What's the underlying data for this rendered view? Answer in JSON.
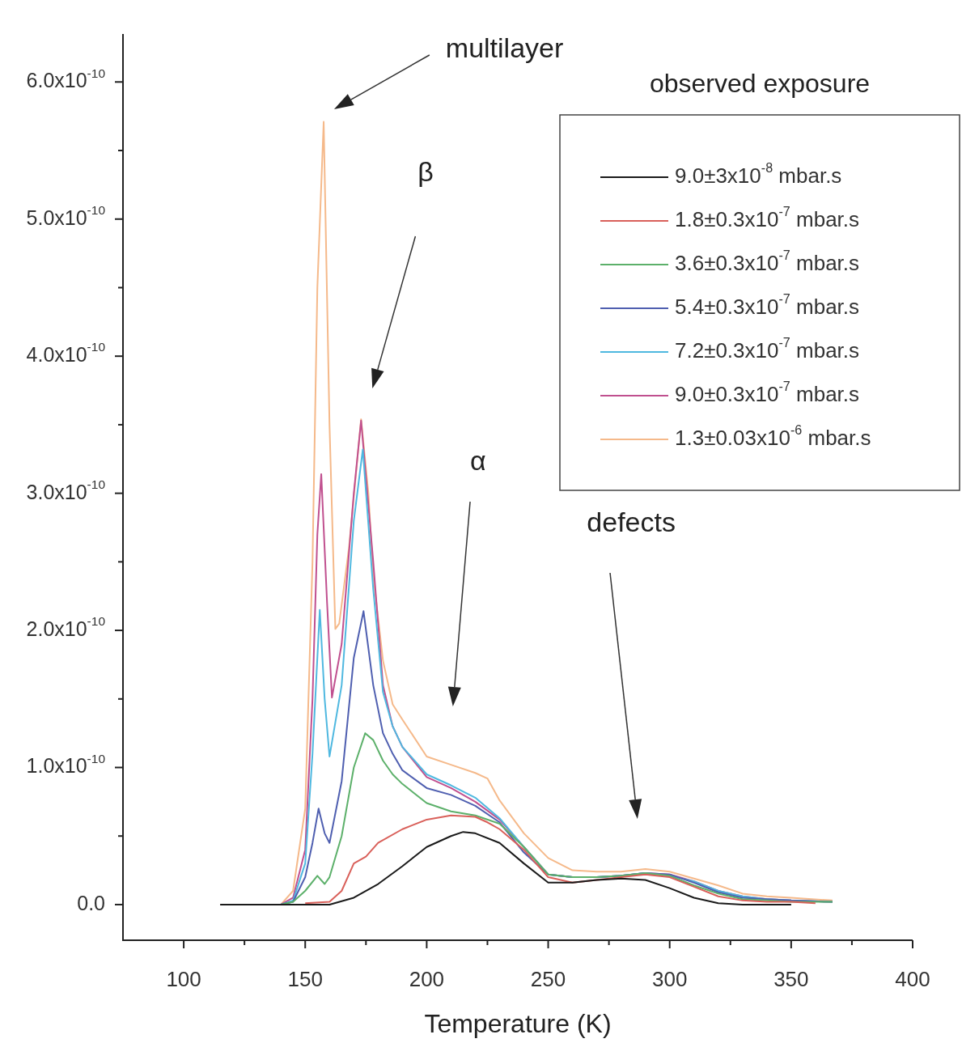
{
  "chart_data": {
    "type": "line",
    "xlabel": "Temperature (K)",
    "legend_title": "observed exposure",
    "legend": "top right",
    "xlim": [
      75,
      400
    ],
    "xticks": [
      {
        "value": 100,
        "label": "100"
      },
      {
        "value": 125,
        "label": null
      },
      {
        "value": 150,
        "label": "150"
      },
      {
        "value": 175,
        "label": null
      },
      {
        "value": 200,
        "label": "200"
      },
      {
        "value": 225,
        "label": null
      },
      {
        "value": 250,
        "label": "250"
      },
      {
        "value": 275,
        "label": null
      },
      {
        "value": 300,
        "label": "300"
      },
      {
        "value": 325,
        "label": null
      },
      {
        "value": 350,
        "label": "350"
      },
      {
        "value": 375,
        "label": null
      },
      {
        "value": 400,
        "label": "400"
      }
    ],
    "ylim": [
      -2.6e-11,
      6.35e-10
    ],
    "yticks": [
      {
        "value": 0,
        "label": "0.0"
      },
      {
        "value": 5e-11,
        "label": null
      },
      {
        "value": 1e-10,
        "label": "1.0x10$^{-10}$"
      },
      {
        "value": 1.5e-10,
        "label": null
      },
      {
        "value": 2e-10,
        "label": "2.0x10$^{-10}$"
      },
      {
        "value": 2.5e-10,
        "label": null
      },
      {
        "value": 3e-10,
        "label": "3.0x10$^{-10}$"
      },
      {
        "value": 3.5e-10,
        "label": null
      },
      {
        "value": 4e-10,
        "label": "4.0x10$^{-10}$"
      },
      {
        "value": 4.5e-10,
        "label": null
      },
      {
        "value": 5e-10,
        "label": "5.0x10$^{-10}$"
      },
      {
        "value": 5.5e-10,
        "label": null
      },
      {
        "value": 6e-10,
        "label": "6.0x10$^{-10}$"
      }
    ],
    "grid": false,
    "marker": "none",
    "line_style": "solid",
    "annotations": [
      "multilayer",
      "β",
      "α",
      "defects"
    ],
    "series": [
      {
        "name": "9.0±3x10$^{-8}$ mbar.s",
        "color": "#1a1a1a",
        "x": [
          115,
          160,
          170,
          180,
          190,
          200,
          210,
          215,
          220,
          230,
          240,
          250,
          260,
          270,
          280,
          290,
          300,
          310,
          320,
          330,
          350
        ],
        "values": [
          0,
          0,
          5e-12,
          1.5e-11,
          2.8e-11,
          4.2e-11,
          5e-11,
          5.3e-11,
          5.2e-11,
          4.5e-11,
          3e-11,
          1.6e-11,
          1.6e-11,
          1.8e-11,
          1.9e-11,
          1.8e-11,
          1.2e-11,
          5e-12,
          1e-12,
          0,
          0
        ]
      },
      {
        "name": "1.8±0.3x10$^{-7}$ mbar.s",
        "color": "#d9605a",
        "x": [
          150,
          160,
          165,
          170,
          175,
          180,
          190,
          200,
          210,
          220,
          225,
          230,
          240,
          250,
          260,
          270,
          280,
          290,
          300,
          310,
          320,
          330,
          340,
          350,
          360
        ],
        "values": [
          1e-12,
          2e-12,
          1e-11,
          3e-11,
          3.5e-11,
          4.5e-11,
          5.5e-11,
          6.2e-11,
          6.5e-11,
          6.4e-11,
          6e-11,
          5.5e-11,
          4e-11,
          2e-11,
          1.6e-11,
          1.8e-11,
          2e-11,
          2.2e-11,
          2e-11,
          1.3e-11,
          6e-12,
          3e-12,
          2e-12,
          2e-12,
          1e-12
        ]
      },
      {
        "name": "3.6±0.3x10$^{-7}$ mbar.s",
        "color": "#5cb06a",
        "x": [
          140,
          145,
          150,
          155,
          158,
          160,
          165,
          170,
          174.7,
          178,
          182,
          186,
          190,
          200,
          210,
          220,
          230,
          240,
          250,
          260,
          270,
          280,
          290,
          300,
          310,
          320,
          330,
          340,
          350,
          367
        ],
        "values": [
          0,
          2e-12,
          1e-11,
          2.1e-11,
          1.5e-11,
          2e-11,
          5e-11,
          1e-10,
          1.25e-10,
          1.2e-10,
          1.05e-10,
          9.5e-11,
          8.8e-11,
          7.4e-11,
          6.8e-11,
          6.5e-11,
          5.9e-11,
          4.2e-11,
          2.2e-11,
          2e-11,
          2e-11,
          2.1e-11,
          2.3e-11,
          2.1e-11,
          1.4e-11,
          8e-12,
          4e-12,
          3e-12,
          2e-12,
          2e-12
        ]
      },
      {
        "name": "5.4±0.3x10$^{-7}$ mbar.s",
        "color": "#4f5fb0",
        "x": [
          140,
          145,
          150,
          153,
          155.5,
          158,
          160,
          165,
          170,
          174,
          178,
          182,
          186,
          190,
          200,
          210,
          220,
          230,
          240,
          250,
          260,
          270,
          280,
          290,
          300,
          310,
          320,
          330,
          340,
          350,
          367
        ],
        "values": [
          0,
          2e-12,
          2e-11,
          4.5e-11,
          7e-11,
          5.2e-11,
          4.5e-11,
          9e-11,
          1.8e-10,
          2.14e-10,
          1.6e-10,
          1.25e-10,
          1.1e-10,
          9.8e-11,
          8.5e-11,
          8e-11,
          7.2e-11,
          6e-11,
          3.8e-11,
          2.2e-11,
          2e-11,
          2e-11,
          2.1e-11,
          2.3e-11,
          2.2e-11,
          1.6e-11,
          9e-12,
          5e-12,
          4e-12,
          3e-12,
          2e-12
        ]
      },
      {
        "name": "7.2±0.3x10$^{-7}$ mbar.s",
        "color": "#4fb8e0",
        "x": [
          140,
          145,
          150,
          153,
          156,
          158,
          160,
          165,
          170,
          173.7,
          178,
          182,
          186,
          190,
          200,
          210,
          220,
          230,
          240,
          250,
          260,
          270,
          280,
          290,
          300,
          310,
          320,
          330,
          340,
          350,
          367
        ],
        "values": [
          0,
          3e-12,
          3e-11,
          1.1e-10,
          2.15e-10,
          1.5e-10,
          1.08e-10,
          1.6e-10,
          2.8e-10,
          3.32e-10,
          2.3e-10,
          1.55e-10,
          1.3e-10,
          1.15e-10,
          9.5e-11,
          8.7e-11,
          7.8e-11,
          6.3e-11,
          4.2e-11,
          2.2e-11,
          2e-11,
          2e-11,
          2.1e-11,
          2.3e-11,
          2.1e-11,
          1.7e-11,
          1e-11,
          6e-12,
          4e-12,
          3e-12,
          2e-12
        ]
      },
      {
        "name": "9.0±0.3x10$^{-7}$ mbar.s",
        "color": "#c0508f",
        "x": [
          140,
          145,
          150,
          153,
          155,
          156.6,
          159,
          161,
          165,
          170,
          173,
          178,
          182,
          186,
          190,
          200,
          210,
          220,
          230,
          240,
          250,
          260,
          270,
          280,
          290,
          300,
          310,
          320,
          330,
          340,
          350,
          367
        ],
        "values": [
          0,
          5e-12,
          4e-11,
          1.5e-10,
          2.7e-10,
          3.14e-10,
          2.2e-10,
          1.51e-10,
          1.9e-10,
          3e-10,
          3.53e-10,
          2.5e-10,
          1.6e-10,
          1.3e-10,
          1.15e-10,
          9.3e-11,
          8.5e-11,
          7.5e-11,
          6.2e-11,
          4.2e-11,
          2.2e-11,
          2e-11,
          2e-11,
          2.1e-11,
          2.3e-11,
          2.2e-11,
          1.7e-11,
          1e-11,
          6e-12,
          4e-12,
          3e-12,
          2e-12
        ]
      },
      {
        "name": "1.3±0.03x10$^{-6}$ mbar.s",
        "color": "#f5b98a",
        "x": [
          115,
          140,
          145,
          150,
          153,
          155,
          157.6,
          160,
          162.4,
          164,
          168,
          173,
          176,
          178,
          182,
          186,
          190,
          200,
          210,
          220,
          225,
          230,
          240,
          250,
          260,
          270,
          280,
          290,
          300,
          310,
          320,
          330,
          340,
          350,
          367
        ],
        "values": [
          0,
          0,
          1e-11,
          7e-11,
          2.5e-10,
          4.5e-10,
          5.71e-10,
          3.5e-10,
          2.01e-10,
          2.05e-10,
          2.6e-10,
          3.54e-10,
          3e-10,
          2.4e-10,
          1.78e-10,
          1.46e-10,
          1.35e-10,
          1.08e-10,
          1.02e-10,
          9.6e-11,
          9.2e-11,
          7.6e-11,
          5.2e-11,
          3.4e-11,
          2.5e-11,
          2.4e-11,
          2.4e-11,
          2.6e-11,
          2.4e-11,
          1.9e-11,
          1.4e-11,
          8e-12,
          6e-12,
          5e-12,
          3e-12
        ]
      }
    ]
  }
}
